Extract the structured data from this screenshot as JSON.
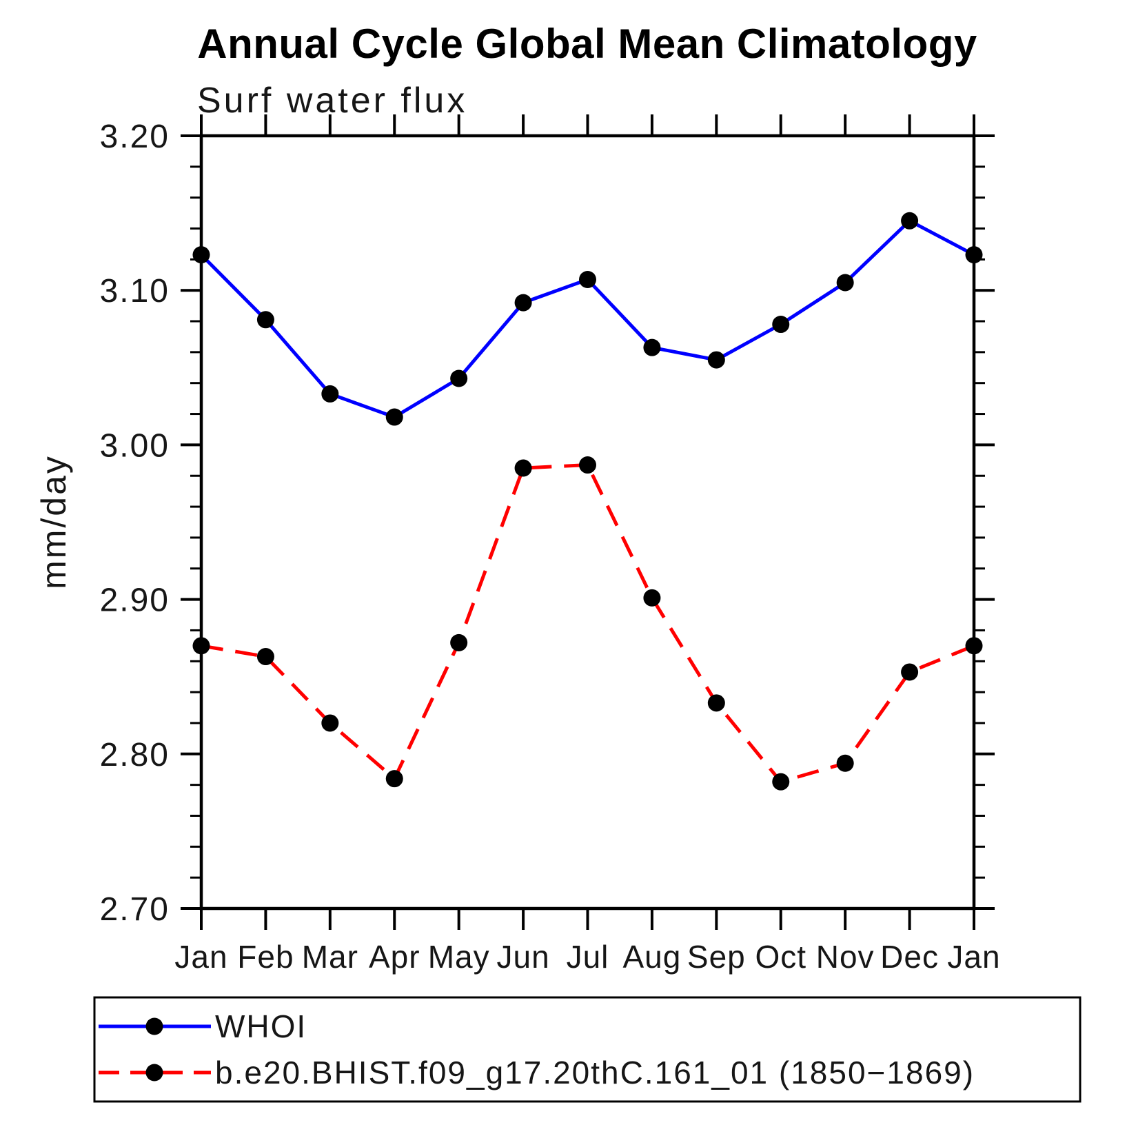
{
  "chart": {
    "title": "Annual Cycle Global Mean Climatology",
    "subtitle": "Surf water flux",
    "ylabel": "mm/day"
  },
  "chart_data": {
    "type": "line",
    "categories": [
      "Jan",
      "Feb",
      "Mar",
      "Apr",
      "May",
      "Jun",
      "Jul",
      "Aug",
      "Sep",
      "Oct",
      "Nov",
      "Dec",
      "Jan"
    ],
    "series": [
      {
        "name": "WHOI",
        "color": "#0000ff",
        "line_style": "solid",
        "marker": "filled-circle",
        "marker_color": "#000000",
        "values": [
          3.123,
          3.081,
          3.033,
          3.018,
          3.043,
          3.092,
          3.107,
          3.063,
          3.055,
          3.078,
          3.105,
          3.145,
          3.123
        ]
      },
      {
        "name": "b.e20.BHIST.f09_g17.20thC.161_01 (1850−1869)",
        "color": "#ff0000",
        "line_style": "dashed",
        "marker": "filled-circle",
        "marker_color": "#000000",
        "values": [
          2.87,
          2.863,
          2.82,
          2.784,
          2.872,
          2.985,
          2.987,
          2.901,
          2.833,
          2.782,
          2.794,
          2.853,
          2.87
        ]
      }
    ],
    "xlabel": "",
    "ylabel": "mm/day",
    "ylim": [
      2.7,
      3.2
    ],
    "ytick_major": 0.1,
    "ytick_minor": 0.02,
    "ytick_labels": [
      "2.70",
      "2.80",
      "2.90",
      "3.00",
      "3.10",
      "3.20"
    ],
    "grid": false,
    "ticks": "outside-all-four-sides",
    "legend_position": "bottom-left-box"
  }
}
